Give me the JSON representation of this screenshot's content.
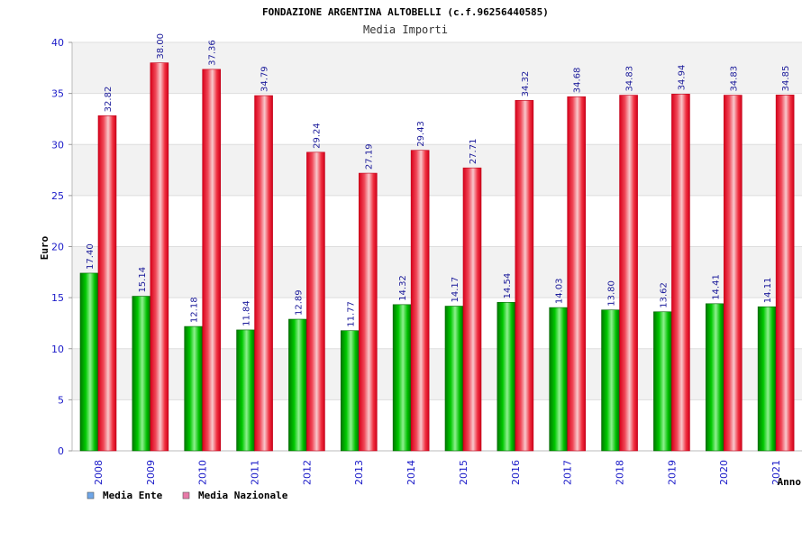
{
  "chart_data": {
    "type": "bar",
    "title": "FONDAZIONE ARGENTINA ALTOBELLI (c.f.96256440585)",
    "subtitle": "Media Importi",
    "xlabel": "Anno",
    "ylabel": "Euro",
    "ylim": [
      0,
      40
    ],
    "yticks": [
      "0",
      "5",
      "10",
      "15",
      "20",
      "25",
      "30",
      "35",
      "40"
    ],
    "grid": true,
    "legend_position": "bottom-left",
    "categories": [
      "2008",
      "2009",
      "2010",
      "2011",
      "2012",
      "2013",
      "2014",
      "2015",
      "2016",
      "2017",
      "2018",
      "2019",
      "2020",
      "2021"
    ],
    "series": [
      {
        "name": "Media Ente",
        "color": "#00b000",
        "legend_color": "#6ea6e8",
        "values": [
          17.4,
          15.14,
          12.18,
          11.84,
          12.89,
          11.77,
          14.32,
          14.17,
          14.54,
          14.03,
          13.8,
          13.62,
          14.41,
          14.11
        ],
        "labels": [
          "17.40",
          "15.14",
          "12.18",
          "11.84",
          "12.89",
          "11.77",
          "14.32",
          "14.17",
          "14.54",
          "14.03",
          "13.80",
          "13.62",
          "14.41",
          "14.11"
        ]
      },
      {
        "name": "Media Nazionale",
        "color": "#e81c2c",
        "legend_color": "#e87aa8",
        "values": [
          32.82,
          38.0,
          37.36,
          34.79,
          29.24,
          27.19,
          29.43,
          27.71,
          34.32,
          34.68,
          34.83,
          34.94,
          34.83,
          34.85
        ],
        "labels": [
          "32.82",
          "38.00",
          "37.36",
          "34.79",
          "29.24",
          "27.19",
          "29.43",
          "27.71",
          "34.32",
          "34.68",
          "34.83",
          "34.94",
          "34.83",
          "34.85"
        ]
      }
    ]
  }
}
